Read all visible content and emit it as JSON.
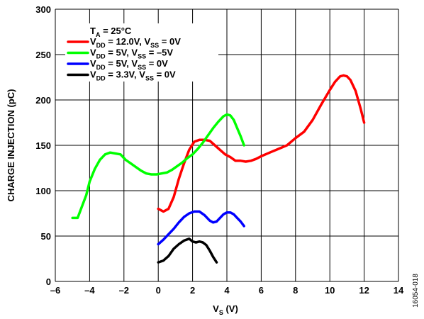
{
  "chart_data": {
    "type": "line",
    "xlabel": "V_S (V)",
    "xlabel_main": "V",
    "xlabel_sub": "S",
    "xlabel_rest": " (V)",
    "ylabel": "CHARGE INJECTION (pC)",
    "xlim": [
      -6,
      14
    ],
    "ylim": [
      0,
      300
    ],
    "xticks": [
      -6,
      -4,
      -2,
      0,
      2,
      4,
      6,
      8,
      10,
      12,
      14
    ],
    "xtick_labels": [
      "–6",
      "–4",
      "–2",
      "0",
      "2",
      "4",
      "6",
      "8",
      "10",
      "12",
      "14"
    ],
    "yticks": [
      0,
      50,
      100,
      150,
      200,
      250,
      300
    ],
    "ytick_labels": [
      "0",
      "50",
      "100",
      "150",
      "200",
      "250",
      "300"
    ],
    "grid": true,
    "legend_position": "top-left",
    "legend_title": "T_A = 25°C",
    "legend_title_parts": [
      [
        "T",
        ""
      ],
      [
        "A",
        "sub"
      ],
      [
        " = 25°C",
        ""
      ]
    ],
    "figure_id": "16054-018",
    "series": [
      {
        "name": "V_DD = 12.0V, V_SS = 0V",
        "label_parts": [
          [
            "V",
            ""
          ],
          [
            "DD",
            "sub"
          ],
          [
            " = 12.0V, V",
            ""
          ],
          [
            "SS",
            "sub"
          ],
          [
            " = 0V",
            ""
          ]
        ],
        "color": "#ff0000",
        "x": [
          0,
          0.3,
          0.6,
          0.9,
          1.2,
          1.5,
          1.8,
          2.1,
          2.4,
          2.7,
          3.0,
          3.3,
          3.6,
          3.9,
          4.2,
          4.5,
          4.8,
          5.1,
          5.4,
          5.7,
          6.0,
          6.5,
          7.0,
          7.5,
          8.0,
          8.5,
          9.0,
          9.5,
          10.0,
          10.3,
          10.6,
          10.8,
          11.0,
          11.2,
          11.5,
          11.8,
          12.0
        ],
        "y": [
          80,
          77,
          80,
          93,
          113,
          130,
          145,
          154,
          156,
          156,
          155,
          150,
          145,
          140,
          137,
          133,
          133,
          132,
          133,
          135,
          138,
          142,
          146,
          150,
          158,
          165,
          178,
          195,
          211,
          220,
          226,
          227,
          226,
          222,
          210,
          190,
          175
        ]
      },
      {
        "name": "V_DD = 5V, V_SS = –5V",
        "label_parts": [
          [
            "V",
            ""
          ],
          [
            "DD",
            "sub"
          ],
          [
            " = 5V, V",
            ""
          ],
          [
            "SS",
            "sub"
          ],
          [
            " = –5V",
            ""
          ]
        ],
        "color": "#00ff00",
        "x": [
          -5.0,
          -4.7,
          -4.5,
          -4.2,
          -4.0,
          -3.7,
          -3.4,
          -3.1,
          -2.8,
          -2.5,
          -2.2,
          -1.9,
          -1.6,
          -1.3,
          -1.0,
          -0.7,
          -0.4,
          -0.1,
          0.2,
          0.5,
          0.8,
          1.1,
          1.4,
          1.7,
          2.0,
          2.3,
          2.6,
          2.9,
          3.2,
          3.5,
          3.8,
          4.0,
          4.2,
          4.4,
          4.6,
          4.8,
          5.0
        ],
        "y": [
          70,
          70,
          80,
          95,
          110,
          124,
          134,
          140,
          142,
          141,
          140,
          134,
          130,
          126,
          122,
          119,
          118,
          118,
          119,
          120,
          123,
          127,
          131,
          136,
          140,
          146,
          153,
          161,
          169,
          176,
          182,
          184,
          183,
          178,
          169,
          160,
          150
        ]
      },
      {
        "name": "V_DD = 5V, V_SS = 0V",
        "label_parts": [
          [
            "V",
            ""
          ],
          [
            "DD",
            "sub"
          ],
          [
            " = 5V, V",
            ""
          ],
          [
            "SS",
            "sub"
          ],
          [
            " = 0V",
            ""
          ]
        ],
        "color": "#0000ff",
        "x": [
          0,
          0.3,
          0.6,
          0.9,
          1.2,
          1.5,
          1.8,
          2.1,
          2.4,
          2.7,
          3.0,
          3.2,
          3.4,
          3.6,
          3.8,
          4.0,
          4.2,
          4.4,
          4.6,
          4.8,
          5.0
        ],
        "y": [
          41,
          46,
          52,
          58,
          65,
          71,
          75,
          77,
          77,
          73,
          67,
          65,
          66,
          70,
          74,
          76,
          76,
          74,
          70,
          66,
          61
        ]
      },
      {
        "name": "V_DD = 3.3V, V_SS = 0V",
        "label_parts": [
          [
            "V",
            ""
          ],
          [
            "DD",
            "sub"
          ],
          [
            " = 3.3V, V",
            ""
          ],
          [
            "SS",
            "sub"
          ],
          [
            " = 0V",
            ""
          ]
        ],
        "color": "#000000",
        "x": [
          0,
          0.3,
          0.6,
          0.9,
          1.2,
          1.5,
          1.8,
          2.0,
          2.2,
          2.4,
          2.6,
          2.8,
          3.0,
          3.2,
          3.4
        ],
        "y": [
          21,
          23,
          28,
          36,
          41,
          45,
          47,
          44,
          43,
          44,
          43,
          40,
          34,
          27,
          21
        ]
      }
    ]
  }
}
